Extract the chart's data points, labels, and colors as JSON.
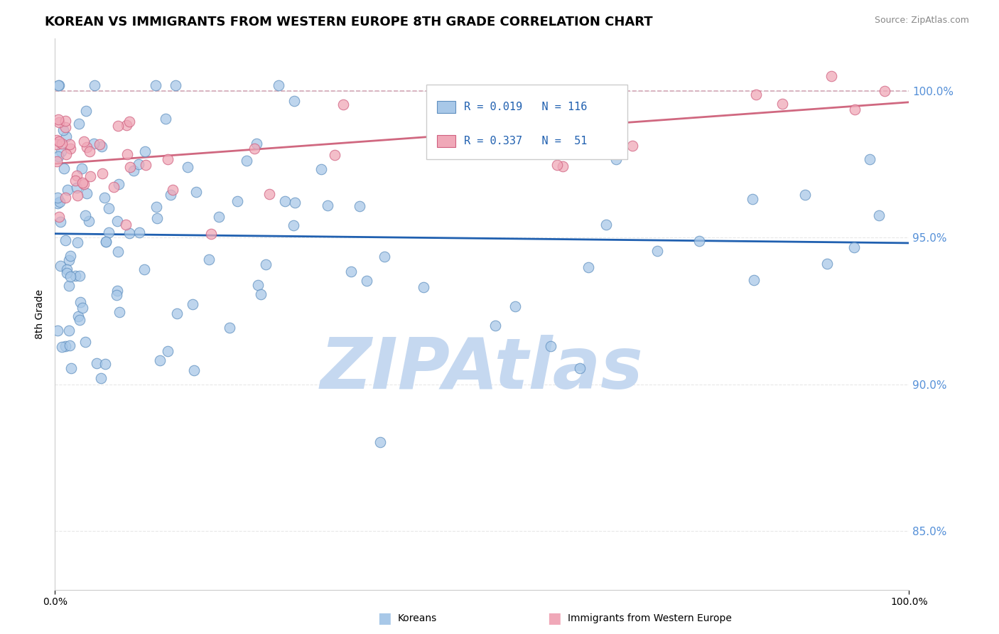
{
  "title": "KOREAN VS IMMIGRANTS FROM WESTERN EUROPE 8TH GRADE CORRELATION CHART",
  "source_text": "Source: ZipAtlas.com",
  "ylabel": "8th Grade",
  "xlim": [
    0.0,
    100.0
  ],
  "ylim": [
    83.0,
    101.8
  ],
  "y_ticks": [
    85.0,
    90.0,
    95.0,
    100.0
  ],
  "y_tick_labels": [
    "85.0%",
    "90.0%",
    "95.0%",
    "100.0%"
  ],
  "x_ticks": [
    0.0,
    100.0
  ],
  "x_tick_labels": [
    "0.0%",
    "100.0%"
  ],
  "blue_R": 0.019,
  "blue_N": 116,
  "pink_R": 0.337,
  "pink_N": 51,
  "blue_dot_color": "#a8c8e8",
  "blue_dot_edge": "#6090c0",
  "pink_dot_color": "#f0a8b8",
  "pink_dot_edge": "#d06080",
  "blue_line_color": "#2060b0",
  "pink_line_color": "#d06880",
  "pink_dash_color": "#d0a0b0",
  "tick_label_color": "#5590d8",
  "watermark_text": "ZIPAtlas",
  "watermark_color": "#c5d8f0",
  "grid_color": "#e8e8e8",
  "legend_R_color": "#2060b0",
  "legend_N_color": "#2060b0"
}
